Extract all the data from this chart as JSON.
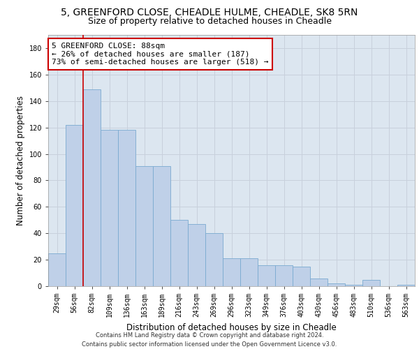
{
  "title1": "5, GREENFORD CLOSE, CHEADLE HULME, CHEADLE, SK8 5RN",
  "title2": "Size of property relative to detached houses in Cheadle",
  "xlabel": "Distribution of detached houses by size in Cheadle",
  "ylabel": "Number of detached properties",
  "categories": [
    "29sqm",
    "56sqm",
    "82sqm",
    "109sqm",
    "136sqm",
    "163sqm",
    "189sqm",
    "216sqm",
    "243sqm",
    "269sqm",
    "296sqm",
    "323sqm",
    "349sqm",
    "376sqm",
    "403sqm",
    "430sqm",
    "456sqm",
    "483sqm",
    "510sqm",
    "536sqm",
    "563sqm"
  ],
  "values": [
    25,
    122,
    149,
    118,
    118,
    91,
    91,
    50,
    47,
    40,
    21,
    21,
    16,
    16,
    15,
    6,
    2,
    1,
    5,
    0,
    1
  ],
  "bar_color": "#bfd0e8",
  "bar_edge_color": "#7aaad0",
  "property_line_x": 1.5,
  "annotation_line1": "5 GREENFORD CLOSE: 88sqm",
  "annotation_line2": "← 26% of detached houses are smaller (187)",
  "annotation_line3": "73% of semi-detached houses are larger (518) →",
  "annotation_box_color": "#ffffff",
  "annotation_box_edge": "#cc0000",
  "ylim": [
    0,
    190
  ],
  "yticks": [
    0,
    20,
    40,
    60,
    80,
    100,
    120,
    140,
    160,
    180
  ],
  "vline_color": "#cc0000",
  "grid_color": "#c8d0dc",
  "bg_color": "#dce6f0",
  "footer": "Contains HM Land Registry data © Crown copyright and database right 2024.\nContains public sector information licensed under the Open Government Licence v3.0.",
  "title1_fontsize": 10,
  "title2_fontsize": 9,
  "xlabel_fontsize": 8.5,
  "ylabel_fontsize": 8.5,
  "tick_fontsize": 7,
  "annotation_fontsize": 8,
  "footer_fontsize": 6
}
